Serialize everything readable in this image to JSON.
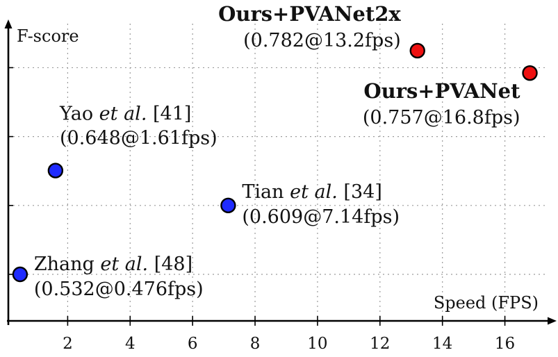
{
  "chart_data": {
    "type": "scatter",
    "xlabel": "Speed (FPS)",
    "ylabel": "F-score",
    "xlim": [
      0.1,
      17.3
    ],
    "ylim": [
      0.48,
      0.82
    ],
    "x_ticks": [
      2,
      4,
      6,
      8,
      10,
      12,
      14,
      16
    ],
    "y_grid": [
      0.532,
      0.609,
      0.686,
      0.763
    ],
    "grid": true,
    "points": [
      {
        "name_pre": "Zhang",
        "name_italic": "et al.",
        "name_post": "[48]",
        "label": "(0.532@0.476fps)",
        "x": 0.476,
        "y": 0.532,
        "color": "#1f2bff",
        "bold": false
      },
      {
        "name_pre": "Yao",
        "name_italic": "et al.",
        "name_post": "[41]",
        "label": "(0.648@1.61fps)",
        "x": 1.61,
        "y": 0.648,
        "color": "#1f2bff",
        "bold": false
      },
      {
        "name_pre": "Tian",
        "name_italic": "et al.",
        "name_post": "[34]",
        "label": "(0.609@7.14fps)",
        "x": 7.14,
        "y": 0.609,
        "color": "#1f2bff",
        "bold": false
      },
      {
        "name_pre": "Ours+PVANet2x",
        "name_italic": "",
        "name_post": "",
        "label": "(0.782@13.2fps)",
        "x": 13.2,
        "y": 0.782,
        "color": "#ee1111",
        "bold": true
      },
      {
        "name_pre": "Ours+PVANet",
        "name_italic": "",
        "name_post": "",
        "label": "(0.757@16.8fps)",
        "x": 16.8,
        "y": 0.757,
        "color": "#ee1111",
        "bold": true
      }
    ]
  }
}
